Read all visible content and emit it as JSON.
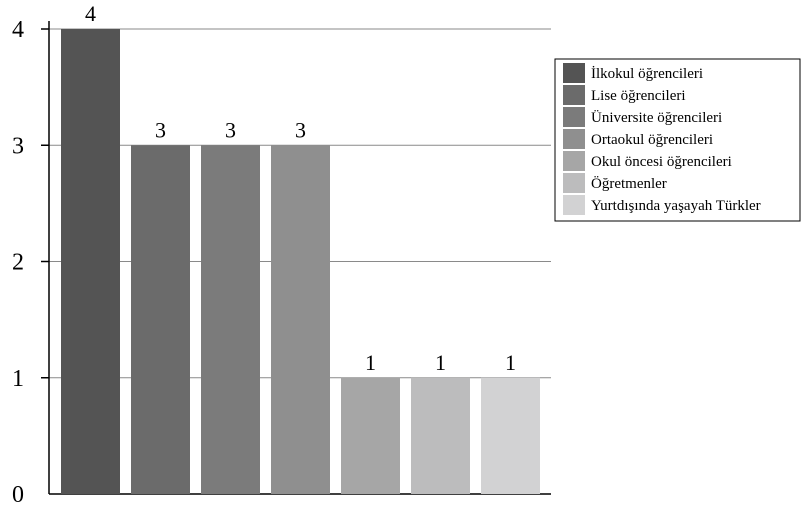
{
  "chart_data": {
    "type": "bar",
    "categories": [
      "İlkokul öğrencileri",
      "Lise öğrencileri",
      "Üniversite öğrencileri",
      "Ortaokul öğrencileri",
      "Okul öncesi öğrencileri",
      "Öğretmenler",
      "Yurtdışında yaşayah Türkler"
    ],
    "values": [
      4,
      3,
      3,
      3,
      1,
      1,
      1
    ],
    "data_labels": [
      "4",
      "3",
      "3",
      "3",
      "1",
      "1",
      "1"
    ],
    "colors": [
      "#545454",
      "#6b6b6b",
      "#7b7b7b",
      "#8f8f8f",
      "#a6a6a6",
      "#bcbcbd",
      "#d2d2d3"
    ],
    "ylim": [
      0,
      4
    ],
    "yticks": [
      "0",
      "1",
      "2",
      "3",
      "4"
    ],
    "grid": true,
    "legend_position": "right",
    "title": "",
    "xlabel": "",
    "ylabel": ""
  }
}
